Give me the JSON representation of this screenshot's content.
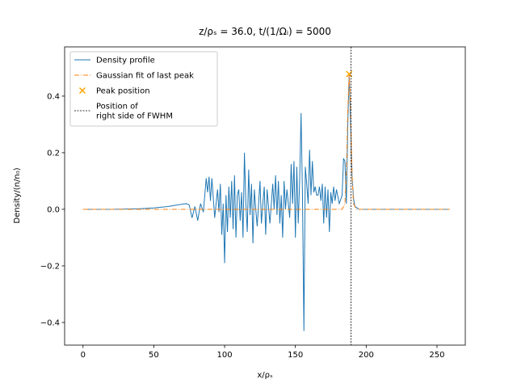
{
  "chart_data": {
    "type": "line",
    "title": "z/ρₛ = 36.0, t/(1/Ωᵢ) = 5000",
    "xlabel": "x/ρₛ",
    "ylabel": "Density/(n/n₀)",
    "xlim": [
      -13,
      270
    ],
    "ylim": [
      -0.48,
      0.574
    ],
    "xticks": [
      0,
      50,
      100,
      150,
      200,
      250
    ],
    "yticks": [
      {
        "value": -0.4,
        "label": "−0.4"
      },
      {
        "value": -0.2,
        "label": "−0.2"
      },
      {
        "value": 0,
        "label": "0.0"
      },
      {
        "value": 0.2,
        "label": "0.2"
      },
      {
        "value": 0.4,
        "label": "0.4"
      }
    ],
    "legend": "upper left",
    "series": [
      {
        "name": "Density profile",
        "color": "#1f77b4",
        "linestyle": "solid",
        "x": [
          0,
          20,
          40,
          50,
          60,
          70,
          73,
          75,
          77,
          79,
          81,
          83,
          85,
          87,
          88,
          89,
          90,
          91,
          93,
          95,
          96,
          97,
          98,
          99,
          100,
          101,
          102,
          103,
          104,
          105,
          106,
          107,
          108,
          109,
          110,
          111,
          112,
          113,
          114,
          115,
          116,
          117,
          118,
          119,
          120,
          121,
          122,
          123,
          125,
          126,
          127,
          128,
          129,
          130,
          131,
          132,
          134,
          135,
          136,
          137,
          138,
          139,
          140,
          141,
          142,
          143,
          144,
          146,
          147,
          148,
          149,
          150,
          151,
          152,
          153,
          154,
          155,
          156,
          157,
          158,
          159,
          160,
          161,
          162,
          163,
          164,
          165,
          166,
          167,
          168,
          169,
          170,
          171,
          172,
          173,
          174,
          175,
          176,
          177,
          178,
          179,
          181,
          183,
          184,
          185,
          186,
          187,
          188,
          189,
          190,
          191,
          192,
          195,
          200,
          259
        ],
        "values": [
          0,
          0,
          0.002,
          0.005,
          0.01,
          0.018,
          0.02,
          0.015,
          -0.03,
          0.01,
          -0.04,
          0.02,
          -0.01,
          0.11,
          0.06,
          0.115,
          0.03,
          0.11,
          -0.03,
          0.07,
          -0.01,
          0.09,
          -0.09,
          0.02,
          -0.19,
          0.05,
          -0.08,
          0.08,
          -0.03,
          0.1,
          -0.07,
          0.12,
          -0.1,
          0.05,
          0.07,
          -0.04,
          0.06,
          -0.1,
          0.2,
          0.02,
          -0.08,
          0.14,
          -0.02,
          0.09,
          -0.12,
          0.07,
          0,
          -0.06,
          0.1,
          -0.05,
          0.02,
          0.08,
          -0.09,
          0.07,
          0.01,
          -0.05,
          0.09,
          0,
          0.12,
          -0.02,
          0.1,
          -0.05,
          0.05,
          -0.1,
          0.1,
          0,
          0.07,
          -0.03,
          0.16,
          0.02,
          0.17,
          -0.1,
          0.15,
          -0.05,
          0.1,
          0.34,
          0.05,
          -0.43,
          0.15,
          0.09,
          0.02,
          0.21,
          0.05,
          0.17,
          0.06,
          0.08,
          0.05,
          0.05,
          0.08,
          0.03,
          0.09,
          -0.05,
          0.08,
          -0.03,
          0.07,
          -0.08,
          0.06,
          0.02,
          0.08,
          0.03,
          0.07,
          0.02,
          0.05,
          0.18,
          0.17,
          0.02,
          0.3,
          0.478,
          0.3,
          0.12,
          0.04,
          0.01,
          0,
          0,
          0
        ]
      },
      {
        "name": "Gaussian fit of last peak",
        "color": "#ff7f0e",
        "linestyle": "dashdot",
        "x": [
          0,
          183,
          185,
          186,
          187,
          188,
          189,
          190,
          191,
          193,
          259
        ],
        "values": [
          0,
          0,
          0.02,
          0.13,
          0.35,
          0.478,
          0.35,
          0.13,
          0.02,
          0,
          0
        ]
      },
      {
        "name": "Peak position",
        "color": "orange",
        "marker": "x",
        "x": [
          188
        ],
        "values": [
          0.478
        ]
      },
      {
        "name": "Position of\nright side of FWHM",
        "color": "black",
        "linestyle": "dotted",
        "vline_x": 189.2
      }
    ]
  }
}
